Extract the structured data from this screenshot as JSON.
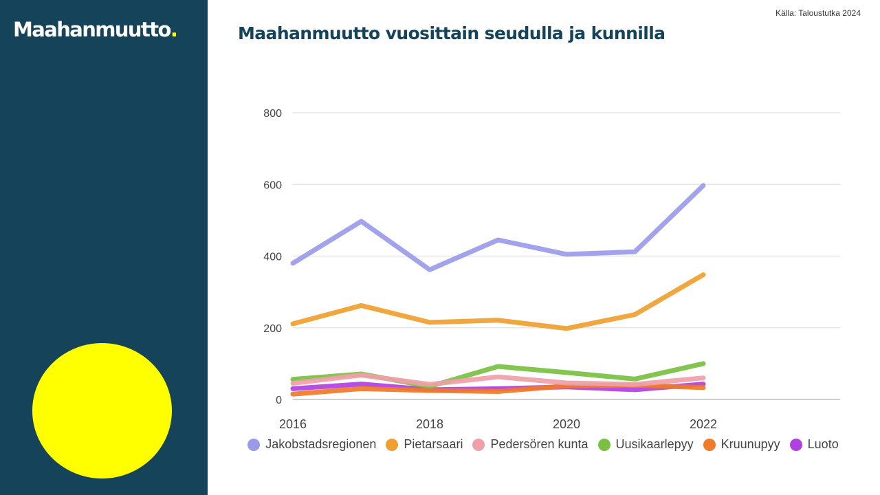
{
  "header": {
    "logo_text": "Maahanmuutto",
    "logo_dot": ".",
    "source": "Källa: Taloustutka 2024",
    "title": "Maahanmuutto vuosittain seudulla ja kunnilla"
  },
  "colors": {
    "sidebar": "#15435a",
    "accent_yellow": "#ffff00",
    "title": "#15435a"
  },
  "chart_data": {
    "type": "line",
    "title": "Maahanmuutto vuosittain seudulla ja kunnilla",
    "xlabel": "",
    "ylabel": "",
    "x": [
      2016,
      2017,
      2018,
      2019,
      2020,
      2021,
      2022
    ],
    "xlim": [
      2016,
      2024
    ],
    "xticks": [
      "2016",
      "2018",
      "2020",
      "2022"
    ],
    "ylim": [
      0,
      800
    ],
    "yticks": [
      "0",
      "200",
      "400",
      "600",
      "800"
    ],
    "grid": true,
    "legend_position": "bottom",
    "series": [
      {
        "name": "Jakobstadsregionen",
        "color": "#9a9be8",
        "values": [
          380,
          497,
          362,
          445,
          405,
          412,
          597
        ]
      },
      {
        "name": "Pietarsaari",
        "color": "#f0a030",
        "values": [
          211,
          262,
          215,
          221,
          198,
          237,
          348
        ]
      },
      {
        "name": "Pedersören kunta",
        "color": "#f0a0a8",
        "values": [
          45,
          68,
          42,
          63,
          46,
          42,
          60
        ]
      },
      {
        "name": "Uusikaarlepyy",
        "color": "#7ac043",
        "values": [
          56,
          71,
          36,
          92,
          75,
          57,
          100
        ]
      },
      {
        "name": "Kruunupyy",
        "color": "#f07a28",
        "values": [
          15,
          30,
          25,
          22,
          38,
          40,
          33
        ]
      },
      {
        "name": "Luoto",
        "color": "#b040e0",
        "values": [
          30,
          43,
          27,
          30,
          35,
          27,
          43
        ]
      }
    ]
  }
}
